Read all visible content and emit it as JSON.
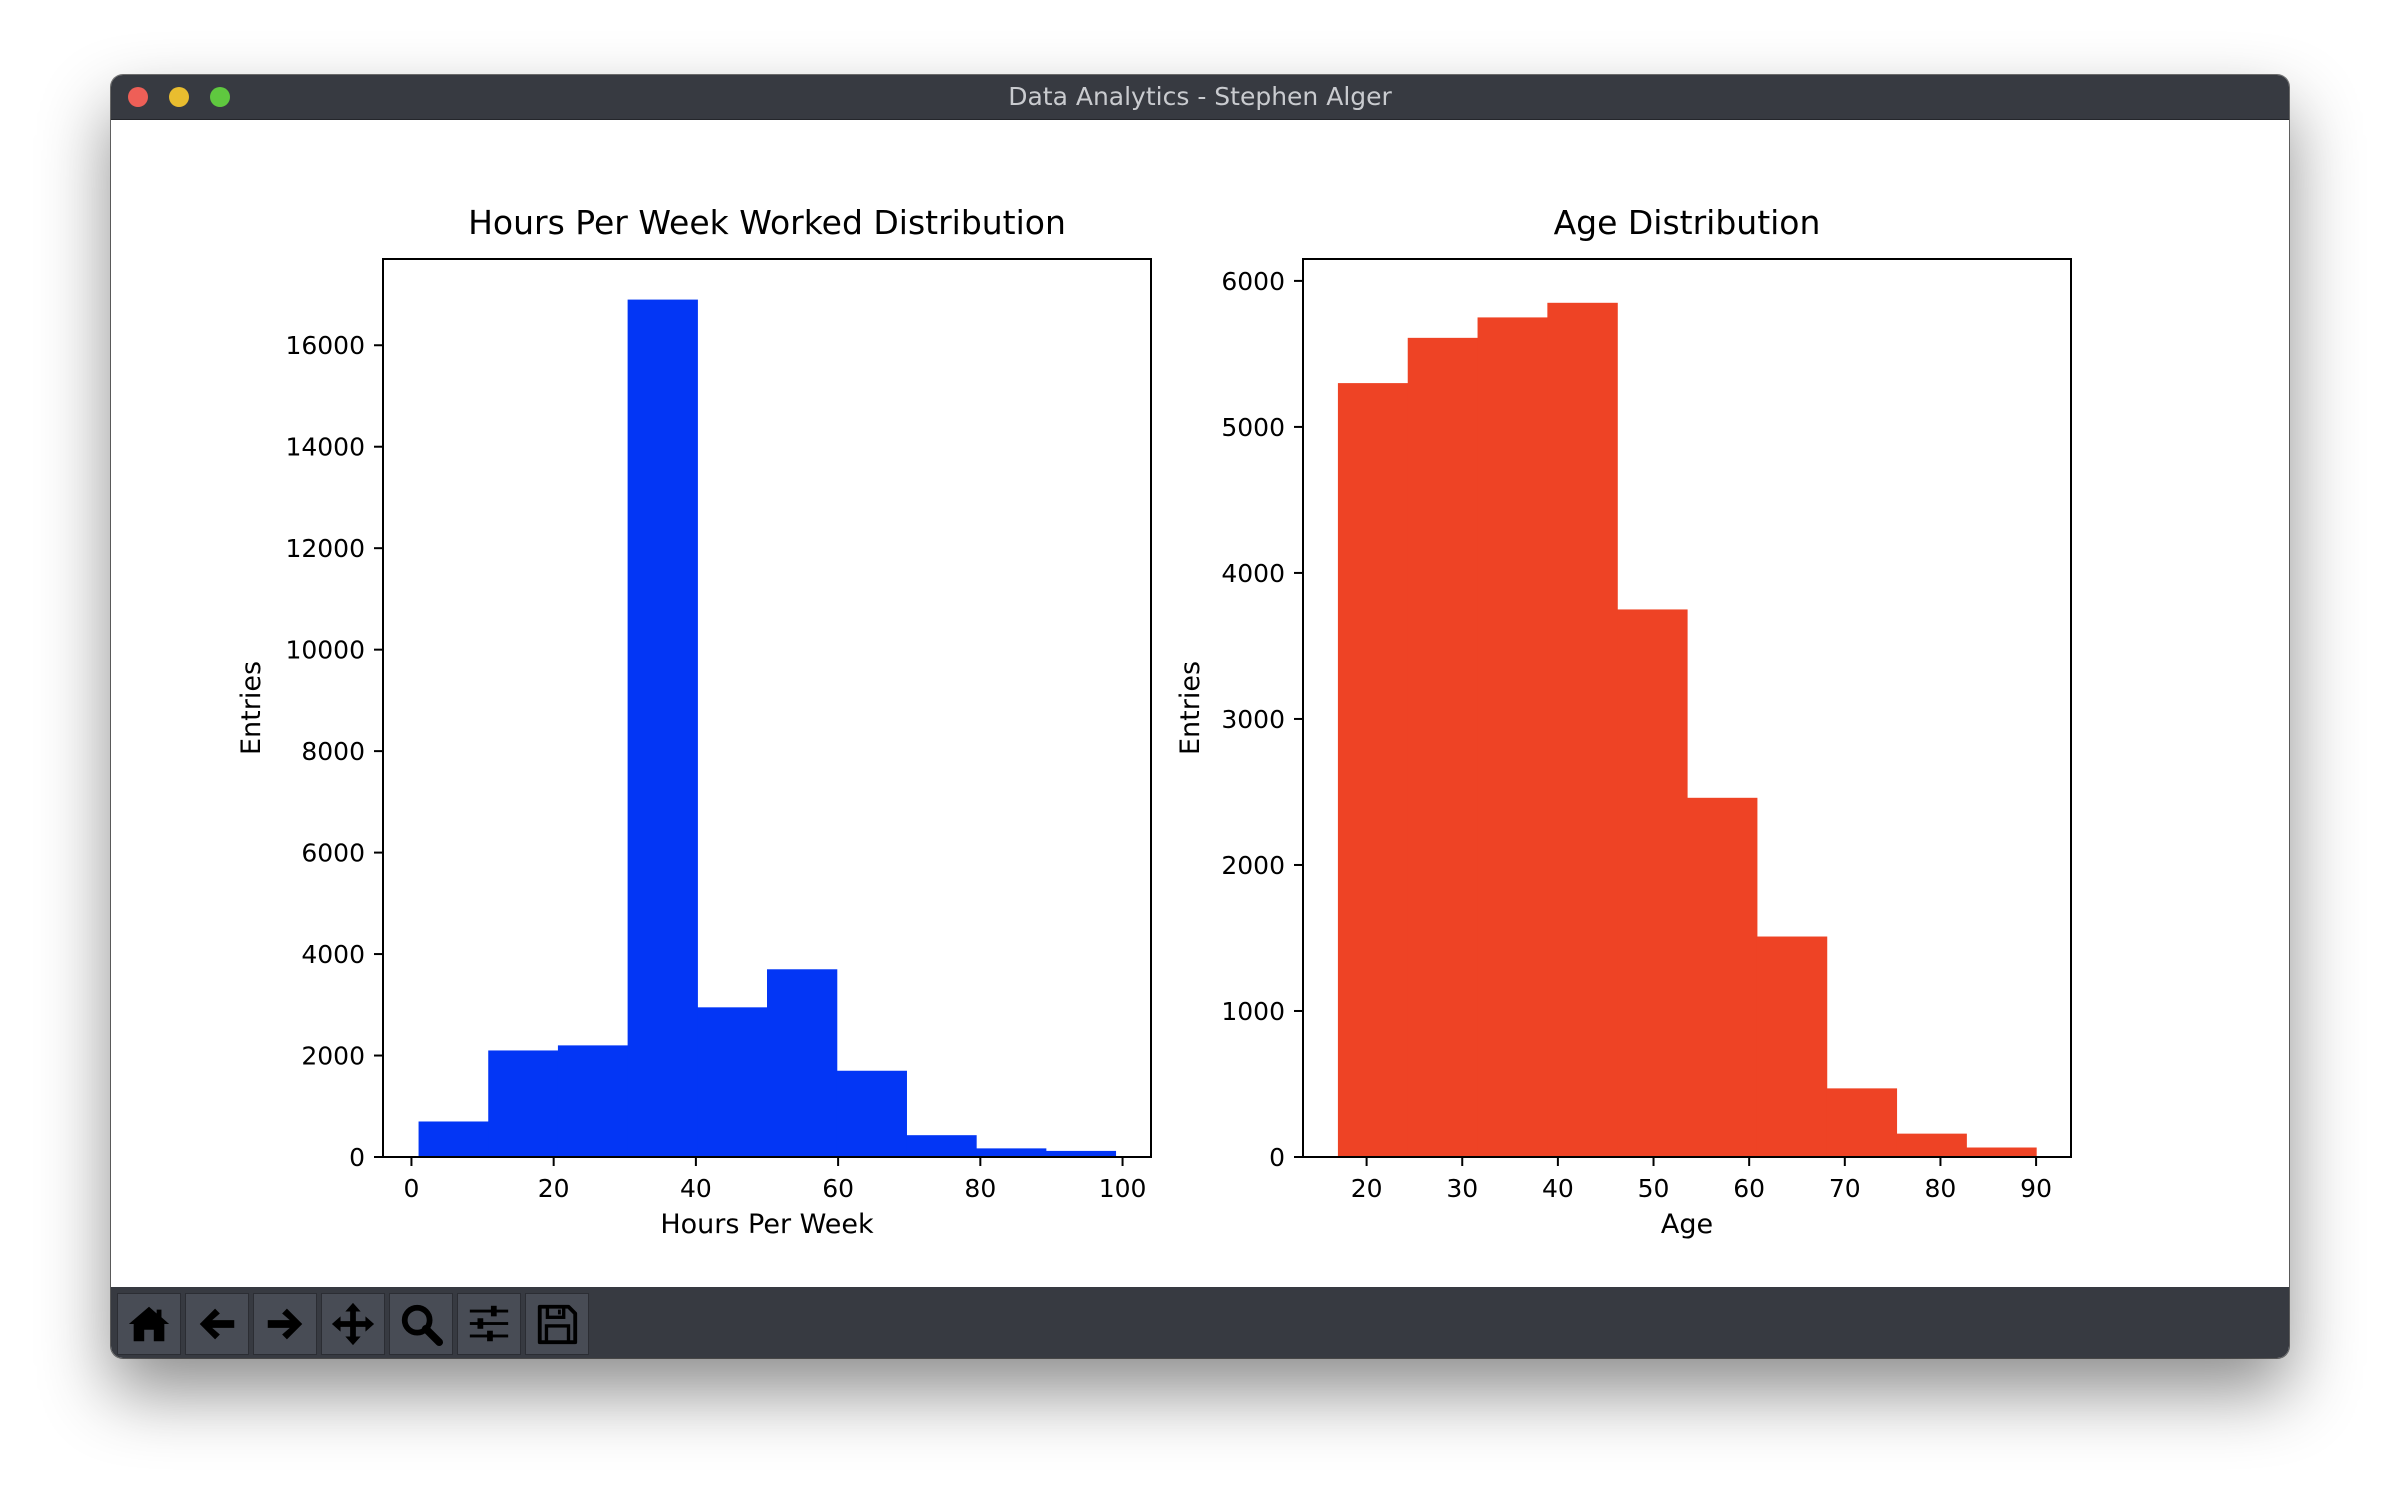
{
  "window": {
    "title": "Data Analytics - Stephen Alger"
  },
  "toolbar": {
    "buttons": [
      {
        "icon": "home-icon"
      },
      {
        "icon": "arrow-left-icon"
      },
      {
        "icon": "arrow-right-icon"
      },
      {
        "icon": "move-icon"
      },
      {
        "icon": "zoom-icon"
      },
      {
        "icon": "sliders-icon"
      },
      {
        "icon": "save-icon"
      }
    ]
  },
  "colors": {
    "hours_bars": "#0336f5",
    "age_bars": "#ee4325",
    "titlebar": "#373a41",
    "toolbar": "#373a41"
  },
  "chart_data": [
    {
      "type": "bar",
      "title": "Hours Per Week Worked Distribution",
      "xlabel": "Hours Per Week",
      "ylabel": "Entries",
      "bin_edges": [
        1,
        10.8,
        20.6,
        30.4,
        40.2,
        50,
        59.8,
        69.6,
        79.4,
        89.2,
        99
      ],
      "values": [
        700,
        2100,
        2200,
        16900,
        2950,
        3700,
        1700,
        430,
        170,
        120
      ],
      "xlim": [
        -4,
        104
      ],
      "ylim": [
        0,
        17700
      ],
      "xticks": [
        0,
        20,
        40,
        60,
        80,
        100
      ],
      "xtick_labels": [
        "0",
        "20",
        "40",
        "60",
        "80",
        "100"
      ],
      "yticks": [
        0,
        2000,
        4000,
        6000,
        8000,
        10000,
        12000,
        14000,
        16000
      ],
      "ytick_labels": [
        "0",
        "2000",
        "4000",
        "6000",
        "8000",
        "10000",
        "12000",
        "14000",
        "16000"
      ],
      "grid": false,
      "color": "#0336f5"
    },
    {
      "type": "bar",
      "title": "Age Distribution",
      "xlabel": "Age",
      "ylabel": "Entries",
      "bin_edges": [
        17,
        24.3,
        31.6,
        38.9,
        46.2,
        53.5,
        60.8,
        68.1,
        75.4,
        82.7,
        90
      ],
      "values": [
        5300,
        5610,
        5750,
        5850,
        3750,
        2460,
        1510,
        470,
        160,
        65
      ],
      "xlim": [
        13.35,
        93.65
      ],
      "ylim": [
        0,
        6150
      ],
      "xticks": [
        20,
        30,
        40,
        50,
        60,
        70,
        80,
        90
      ],
      "xtick_labels": [
        "20",
        "30",
        "40",
        "50",
        "60",
        "70",
        "80",
        "90"
      ],
      "yticks": [
        0,
        1000,
        2000,
        3000,
        4000,
        5000,
        6000
      ],
      "ytick_labels": [
        "0",
        "1000",
        "2000",
        "3000",
        "4000",
        "5000",
        "6000"
      ],
      "grid": false,
      "color": "#ee4325"
    }
  ]
}
